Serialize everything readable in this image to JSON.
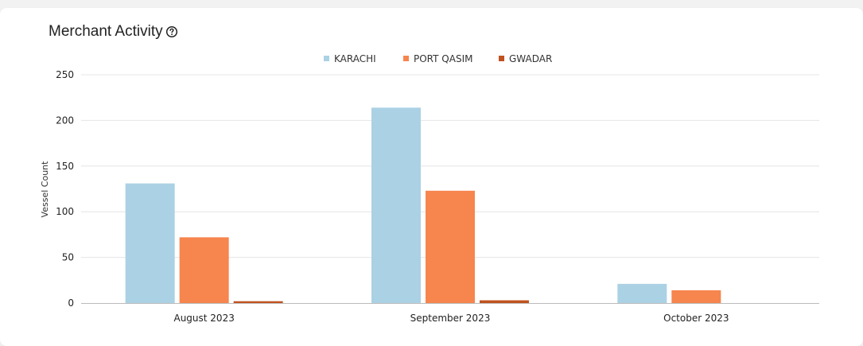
{
  "card": {
    "title": "Merchant Activity",
    "help_icon": "question-circle-icon"
  },
  "chart_data": {
    "type": "bar",
    "title": "Merchant Activity",
    "ylabel": "Vessel Count",
    "xlabel": "",
    "ylim": [
      0,
      250
    ],
    "yticks": [
      "0",
      "50",
      "100",
      "150",
      "200",
      "250"
    ],
    "categories": [
      "August 2023",
      "September 2023",
      "October 2023"
    ],
    "series": [
      {
        "name": "KARACHI",
        "color": "#abd1e4",
        "values": [
          131,
          214,
          21
        ]
      },
      {
        "name": "PORT QASIM",
        "color": "#f6854e",
        "values": [
          72,
          123,
          14
        ]
      },
      {
        "name": "GWADAR",
        "color": "#c0521f",
        "values": [
          2,
          3,
          0
        ]
      }
    ],
    "legend_position": "top-center",
    "grid": true
  }
}
